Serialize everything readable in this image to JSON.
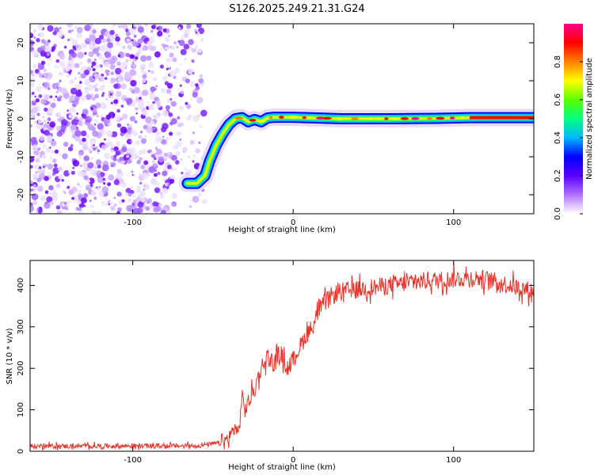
{
  "title": "S126.2025.249.21.31.G24",
  "chart_data": [
    {
      "type": "heatmap",
      "name": "spectrogram",
      "xlabel": "Height of straight line (km)",
      "ylabel": "Frequency (Hz)",
      "xlim": [
        -164,
        150
      ],
      "ylim": [
        -25,
        25
      ],
      "xticks": [
        -100,
        0,
        100
      ],
      "yticks": [
        -20,
        -10,
        0,
        10,
        20
      ],
      "xtick_labels": [
        "-100",
        "0",
        "100"
      ],
      "ytick_labels": [
        "-20",
        "-10",
        "0",
        "10",
        "20"
      ],
      "noise_region_x": [
        -164,
        -55
      ],
      "ridge": {
        "x": [
          -66,
          -60,
          -55,
          -52,
          -48,
          -44,
          -40,
          -36,
          -32,
          -28,
          -24,
          -20,
          -16,
          -12,
          0,
          30,
          60,
          90,
          110,
          150
        ],
        "y": [
          -17,
          -17,
          -15,
          -11,
          -7,
          -4,
          -1.5,
          0,
          0.3,
          -0.8,
          -0.2,
          -0.8,
          0.2,
          0.4,
          0.4,
          0.0,
          0.0,
          0.1,
          0.3,
          0.3
        ]
      },
      "colorbar": {
        "label": "Normalized spectral amplitude",
        "range": [
          0,
          1
        ],
        "ticks": [
          "0.0",
          "0.2",
          "0.4",
          "0.6",
          "0.8"
        ],
        "colors": [
          "#ffffff",
          "#b070ff",
          "#5a00ff",
          "#0000ff",
          "#00b8ff",
          "#00ff80",
          "#5aff00",
          "#ffff00",
          "#ff8000",
          "#ff0000",
          "#ff0090"
        ]
      }
    },
    {
      "type": "line",
      "name": "snr",
      "xlabel": "Height of straight line (km)",
      "ylabel": "SNR (10 * v/v)",
      "xlim": [
        -164,
        150
      ],
      "ylim": [
        0,
        460
      ],
      "xticks": [
        -100,
        0,
        100
      ],
      "yticks": [
        0,
        100,
        200,
        300,
        400
      ],
      "xtick_labels": [
        "-100",
        "0",
        "100"
      ],
      "ytick_labels": [
        "0",
        "100",
        "200",
        "300",
        "400"
      ],
      "color": "#e8332a",
      "anchors": {
        "x": [
          -164,
          -60,
          -45,
          -40,
          -36,
          -34,
          -32,
          -30,
          -24,
          -20,
          -16,
          -12,
          -8,
          -4,
          0,
          4,
          8,
          12,
          16,
          20,
          24,
          30,
          40,
          60,
          80,
          100,
          110,
          120,
          130,
          140,
          150
        ],
        "y": [
          12,
          13,
          20,
          30,
          60,
          40,
          130,
          100,
          150,
          200,
          230,
          210,
          240,
          200,
          220,
          250,
          280,
          300,
          340,
          360,
          375,
          385,
          390,
          400,
          410,
          415,
          418,
          415,
          405,
          395,
          385
        ]
      },
      "noise_amplitude": [
        6,
        22
      ]
    }
  ]
}
